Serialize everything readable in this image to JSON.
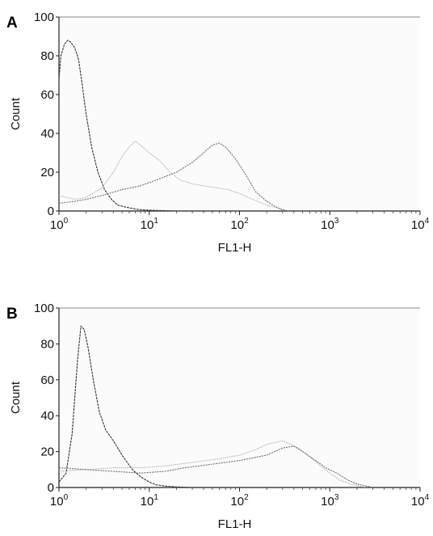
{
  "chart_data": [
    {
      "panel_label": "A",
      "type": "line",
      "xlabel": "FL1-H",
      "ylabel": "Count",
      "xscale": "log",
      "xlim": [
        1,
        10000
      ],
      "ylim": [
        0,
        100
      ],
      "yticks": [
        "0",
        "20",
        "40",
        "60",
        "80",
        "100"
      ],
      "xticks": [
        {
          "base": "10",
          "exp": "0"
        },
        {
          "base": "10",
          "exp": "1"
        },
        {
          "base": "10",
          "exp": "2"
        },
        {
          "base": "10",
          "exp": "3"
        },
        {
          "base": "10",
          "exp": "4"
        }
      ],
      "series": [
        {
          "style": "dark-dashed",
          "color": "#333333",
          "x": [
            1,
            1.05,
            1.15,
            1.25,
            1.35,
            1.5,
            1.65,
            1.8,
            2.0,
            2.3,
            2.7,
            3.2,
            3.8,
            4.5,
            5.5,
            7,
            9,
            12,
            20
          ],
          "y": [
            68,
            80,
            86,
            88,
            87,
            84,
            78,
            66,
            50,
            33,
            20,
            11,
            6,
            3,
            2,
            1,
            0.5,
            0.3,
            0
          ]
        },
        {
          "style": "light-dotted",
          "color": "#a8a8a8",
          "x": [
            1,
            1.5,
            2,
            3,
            4,
            5,
            6,
            7,
            8,
            10,
            13,
            17,
            22,
            30,
            40,
            55,
            75,
            100,
            140,
            200,
            300
          ],
          "y": [
            8,
            6,
            7,
            12,
            20,
            28,
            33,
            36,
            34,
            30,
            26,
            20,
            16,
            14,
            13,
            12,
            11,
            9,
            6,
            3,
            1
          ]
        },
        {
          "style": "mid-dotted",
          "color": "#6e6e6e",
          "x": [
            1,
            1.5,
            2,
            3,
            5,
            8,
            12,
            20,
            30,
            40,
            50,
            60,
            70,
            90,
            120,
            150,
            200,
            280,
            350
          ],
          "y": [
            4,
            5,
            6,
            8,
            11,
            13,
            16,
            20,
            25,
            30,
            34,
            35,
            33,
            27,
            18,
            10,
            5,
            1,
            0
          ]
        }
      ]
    },
    {
      "panel_label": "B",
      "type": "line",
      "xlabel": "FL1-H",
      "ylabel": "Count",
      "xscale": "log",
      "xlim": [
        1,
        10000
      ],
      "ylim": [
        0,
        100
      ],
      "yticks": [
        "0",
        "20",
        "40",
        "60",
        "80",
        "100"
      ],
      "xticks": [
        {
          "base": "10",
          "exp": "0"
        },
        {
          "base": "10",
          "exp": "1"
        },
        {
          "base": "10",
          "exp": "2"
        },
        {
          "base": "10",
          "exp": "3"
        },
        {
          "base": "10",
          "exp": "4"
        }
      ],
      "series": [
        {
          "style": "dark-dashed",
          "color": "#333333",
          "x": [
            1,
            1.2,
            1.4,
            1.6,
            1.75,
            1.9,
            2.1,
            2.4,
            2.8,
            3.3,
            4,
            5,
            6.5,
            8,
            10,
            12,
            15,
            20,
            30
          ],
          "y": [
            3,
            8,
            30,
            70,
            90,
            88,
            78,
            60,
            42,
            32,
            26,
            18,
            10,
            6,
            3,
            1.5,
            0.8,
            0.3,
            0
          ]
        },
        {
          "style": "light-dotted",
          "color": "#a8a8a8",
          "x": [
            1,
            2,
            4,
            8,
            15,
            30,
            60,
            100,
            150,
            200,
            300,
            450,
            600,
            800,
            1000,
            1300,
            1700,
            2500
          ],
          "y": [
            9,
            10,
            11,
            11,
            12,
            14,
            16,
            18,
            21,
            24,
            26,
            22,
            17,
            12,
            8,
            4,
            2,
            0
          ]
        },
        {
          "style": "mid-dotted",
          "color": "#6e6e6e",
          "x": [
            1,
            2,
            4,
            8,
            15,
            25,
            50,
            100,
            200,
            300,
            400,
            500,
            700,
            900,
            1200,
            1600,
            2000,
            3000
          ],
          "y": [
            11,
            10,
            9,
            8,
            9,
            11,
            13,
            15,
            18,
            22,
            23,
            20,
            15,
            11,
            8,
            4,
            2,
            0
          ]
        }
      ]
    }
  ]
}
